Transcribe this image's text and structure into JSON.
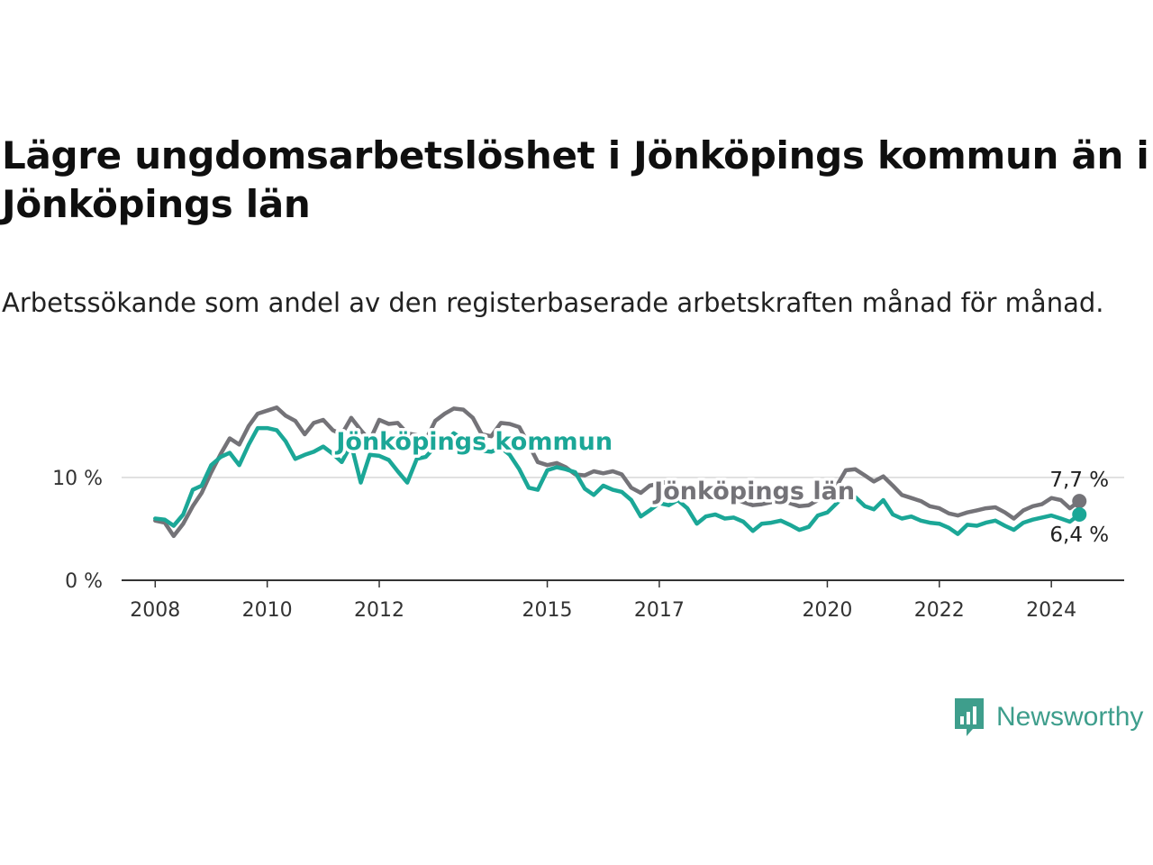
{
  "header": {
    "title": "Lägre ungdomsarbetslöshet i Jönköpings kommun än i Jönköpings län",
    "subtitle": "Arbetssökande som andel av den registerbaserade arbetskraften månad för månad."
  },
  "brand": {
    "name": "Newsworthy",
    "color": "#3e9e8c"
  },
  "chart_data": {
    "type": "line",
    "title": "Lägre ungdomsarbetslöshet i Jönköpings kommun än i Jönköpings län",
    "xlabel": "",
    "ylabel": "",
    "xlim": [
      2007.4,
      2025.3
    ],
    "ylim": [
      0,
      17
    ],
    "x_ticks": [
      {
        "value": 2008,
        "label": "2008"
      },
      {
        "value": 2010,
        "label": "2010"
      },
      {
        "value": 2012,
        "label": "2012"
      },
      {
        "value": 2015,
        "label": "2015"
      },
      {
        "value": 2017,
        "label": "2017"
      },
      {
        "value": 2020,
        "label": "2020"
      },
      {
        "value": 2022,
        "label": "2022"
      },
      {
        "value": 2024,
        "label": "2024"
      }
    ],
    "y_ticks": [
      {
        "value": 0,
        "label": "0 %"
      },
      {
        "value": 10,
        "label": "10 %"
      }
    ],
    "grid": "horizontal",
    "series": [
      {
        "name": "Jönköpings län",
        "color": "#747378",
        "end_label": "7,7 %",
        "end_value": 7.7,
        "points": [
          [
            2008.0,
            5.8
          ],
          [
            2008.17,
            5.6
          ],
          [
            2008.33,
            4.3
          ],
          [
            2008.5,
            5.5
          ],
          [
            2008.67,
            7.2
          ],
          [
            2008.83,
            8.5
          ],
          [
            2009.0,
            10.5
          ],
          [
            2009.17,
            12.3
          ],
          [
            2009.33,
            13.8
          ],
          [
            2009.5,
            13.2
          ],
          [
            2009.67,
            15.0
          ],
          [
            2009.83,
            16.2
          ],
          [
            2010.0,
            16.5
          ],
          [
            2010.17,
            16.8
          ],
          [
            2010.33,
            16.0
          ],
          [
            2010.5,
            15.5
          ],
          [
            2010.67,
            14.2
          ],
          [
            2010.83,
            15.3
          ],
          [
            2011.0,
            15.6
          ],
          [
            2011.17,
            14.6
          ],
          [
            2011.33,
            14.2
          ],
          [
            2011.5,
            15.8
          ],
          [
            2011.67,
            14.6
          ],
          [
            2011.83,
            13.6
          ],
          [
            2012.0,
            15.6
          ],
          [
            2012.17,
            15.2
          ],
          [
            2012.33,
            15.3
          ],
          [
            2012.5,
            14.3
          ],
          [
            2012.67,
            14.1
          ],
          [
            2012.83,
            13.6
          ],
          [
            2013.0,
            15.5
          ],
          [
            2013.17,
            16.2
          ],
          [
            2013.33,
            16.7
          ],
          [
            2013.5,
            16.6
          ],
          [
            2013.67,
            15.8
          ],
          [
            2013.83,
            14.2
          ],
          [
            2014.0,
            14.0
          ],
          [
            2014.17,
            15.3
          ],
          [
            2014.33,
            15.2
          ],
          [
            2014.5,
            14.9
          ],
          [
            2014.67,
            13.2
          ],
          [
            2014.83,
            11.5
          ],
          [
            2015.0,
            11.2
          ],
          [
            2015.17,
            11.4
          ],
          [
            2015.33,
            11.0
          ],
          [
            2015.5,
            10.3
          ],
          [
            2015.67,
            10.2
          ],
          [
            2015.83,
            10.6
          ],
          [
            2016.0,
            10.4
          ],
          [
            2016.17,
            10.6
          ],
          [
            2016.33,
            10.3
          ],
          [
            2016.5,
            9.0
          ],
          [
            2016.67,
            8.5
          ],
          [
            2016.83,
            9.2
          ],
          [
            2017.0,
            9.4
          ],
          [
            2017.17,
            9.6
          ],
          [
            2017.33,
            9.0
          ],
          [
            2017.5,
            8.3
          ],
          [
            2017.67,
            8.0
          ],
          [
            2017.83,
            8.1
          ],
          [
            2018.0,
            8.2
          ],
          [
            2018.17,
            8.3
          ],
          [
            2018.33,
            8.0
          ],
          [
            2018.5,
            7.6
          ],
          [
            2018.67,
            7.3
          ],
          [
            2018.83,
            7.4
          ],
          [
            2019.0,
            7.6
          ],
          [
            2019.17,
            7.8
          ],
          [
            2019.33,
            7.5
          ],
          [
            2019.5,
            7.2
          ],
          [
            2019.67,
            7.3
          ],
          [
            2019.83,
            7.8
          ],
          [
            2020.0,
            8.4
          ],
          [
            2020.17,
            9.2
          ],
          [
            2020.33,
            10.7
          ],
          [
            2020.5,
            10.8
          ],
          [
            2020.67,
            10.2
          ],
          [
            2020.83,
            9.6
          ],
          [
            2021.0,
            10.1
          ],
          [
            2021.17,
            9.2
          ],
          [
            2021.33,
            8.3
          ],
          [
            2021.5,
            8.0
          ],
          [
            2021.67,
            7.7
          ],
          [
            2021.83,
            7.2
          ],
          [
            2022.0,
            7.0
          ],
          [
            2022.17,
            6.5
          ],
          [
            2022.33,
            6.3
          ],
          [
            2022.5,
            6.6
          ],
          [
            2022.67,
            6.8
          ],
          [
            2022.83,
            7.0
          ],
          [
            2023.0,
            7.1
          ],
          [
            2023.17,
            6.6
          ],
          [
            2023.33,
            6.0
          ],
          [
            2023.5,
            6.8
          ],
          [
            2023.67,
            7.2
          ],
          [
            2023.83,
            7.4
          ],
          [
            2024.0,
            8.0
          ],
          [
            2024.17,
            7.8
          ],
          [
            2024.33,
            7.0
          ],
          [
            2024.5,
            7.7
          ]
        ]
      },
      {
        "name": "Jönköpings kommun",
        "color": "#1ba797",
        "end_label": "6,4 %",
        "end_value": 6.4,
        "points": [
          [
            2008.0,
            6.0
          ],
          [
            2008.17,
            5.9
          ],
          [
            2008.33,
            5.3
          ],
          [
            2008.5,
            6.4
          ],
          [
            2008.67,
            8.8
          ],
          [
            2008.83,
            9.2
          ],
          [
            2009.0,
            11.2
          ],
          [
            2009.17,
            12.0
          ],
          [
            2009.33,
            12.4
          ],
          [
            2009.5,
            11.2
          ],
          [
            2009.67,
            13.2
          ],
          [
            2009.83,
            14.8
          ],
          [
            2010.0,
            14.8
          ],
          [
            2010.17,
            14.6
          ],
          [
            2010.33,
            13.5
          ],
          [
            2010.5,
            11.8
          ],
          [
            2010.67,
            12.2
          ],
          [
            2010.83,
            12.5
          ],
          [
            2011.0,
            13.0
          ],
          [
            2011.17,
            12.3
          ],
          [
            2011.33,
            11.5
          ],
          [
            2011.5,
            13.2
          ],
          [
            2011.67,
            9.5
          ],
          [
            2011.83,
            12.2
          ],
          [
            2012.0,
            12.1
          ],
          [
            2012.17,
            11.7
          ],
          [
            2012.33,
            10.6
          ],
          [
            2012.5,
            9.5
          ],
          [
            2012.67,
            11.8
          ],
          [
            2012.83,
            12.0
          ],
          [
            2013.0,
            13.0
          ],
          [
            2013.17,
            13.4
          ],
          [
            2013.33,
            14.3
          ],
          [
            2013.5,
            13.7
          ],
          [
            2013.67,
            13.5
          ],
          [
            2013.83,
            12.6
          ],
          [
            2014.0,
            12.5
          ],
          [
            2014.17,
            12.9
          ],
          [
            2014.33,
            12.2
          ],
          [
            2014.5,
            10.8
          ],
          [
            2014.67,
            9.0
          ],
          [
            2014.83,
            8.8
          ],
          [
            2015.0,
            10.7
          ],
          [
            2015.17,
            11.0
          ],
          [
            2015.33,
            10.8
          ],
          [
            2015.5,
            10.5
          ],
          [
            2015.67,
            8.9
          ],
          [
            2015.83,
            8.3
          ],
          [
            2016.0,
            9.2
          ],
          [
            2016.17,
            8.8
          ],
          [
            2016.33,
            8.6
          ],
          [
            2016.5,
            7.8
          ],
          [
            2016.67,
            6.2
          ],
          [
            2016.83,
            6.8
          ],
          [
            2017.0,
            7.5
          ],
          [
            2017.17,
            7.3
          ],
          [
            2017.33,
            7.8
          ],
          [
            2017.5,
            7.0
          ],
          [
            2017.67,
            5.5
          ],
          [
            2017.83,
            6.2
          ],
          [
            2018.0,
            6.4
          ],
          [
            2018.17,
            6.0
          ],
          [
            2018.33,
            6.1
          ],
          [
            2018.5,
            5.7
          ],
          [
            2018.67,
            4.8
          ],
          [
            2018.83,
            5.5
          ],
          [
            2019.0,
            5.6
          ],
          [
            2019.17,
            5.8
          ],
          [
            2019.33,
            5.4
          ],
          [
            2019.5,
            4.9
          ],
          [
            2019.67,
            5.2
          ],
          [
            2019.83,
            6.3
          ],
          [
            2020.0,
            6.6
          ],
          [
            2020.17,
            7.5
          ],
          [
            2020.33,
            8.4
          ],
          [
            2020.5,
            8.1
          ],
          [
            2020.67,
            7.2
          ],
          [
            2020.83,
            6.9
          ],
          [
            2021.0,
            7.8
          ],
          [
            2021.17,
            6.4
          ],
          [
            2021.33,
            6.0
          ],
          [
            2021.5,
            6.2
          ],
          [
            2021.67,
            5.8
          ],
          [
            2021.83,
            5.6
          ],
          [
            2022.0,
            5.5
          ],
          [
            2022.17,
            5.1
          ],
          [
            2022.33,
            4.5
          ],
          [
            2022.5,
            5.4
          ],
          [
            2022.67,
            5.3
          ],
          [
            2022.83,
            5.6
          ],
          [
            2023.0,
            5.8
          ],
          [
            2023.17,
            5.3
          ],
          [
            2023.33,
            4.9
          ],
          [
            2023.5,
            5.6
          ],
          [
            2023.67,
            5.9
          ],
          [
            2023.83,
            6.1
          ],
          [
            2024.0,
            6.3
          ],
          [
            2024.17,
            6.0
          ],
          [
            2024.33,
            5.7
          ],
          [
            2024.5,
            6.4
          ]
        ]
      }
    ],
    "series_labels": [
      {
        "text": "Jönköpings kommun",
        "series": "Jönköpings kommun",
        "x": 2013.7,
        "y": 12.7
      },
      {
        "text": "Jönköpings län",
        "series": "Jönköpings län",
        "x": 2018.7,
        "y": 7.9
      }
    ]
  }
}
